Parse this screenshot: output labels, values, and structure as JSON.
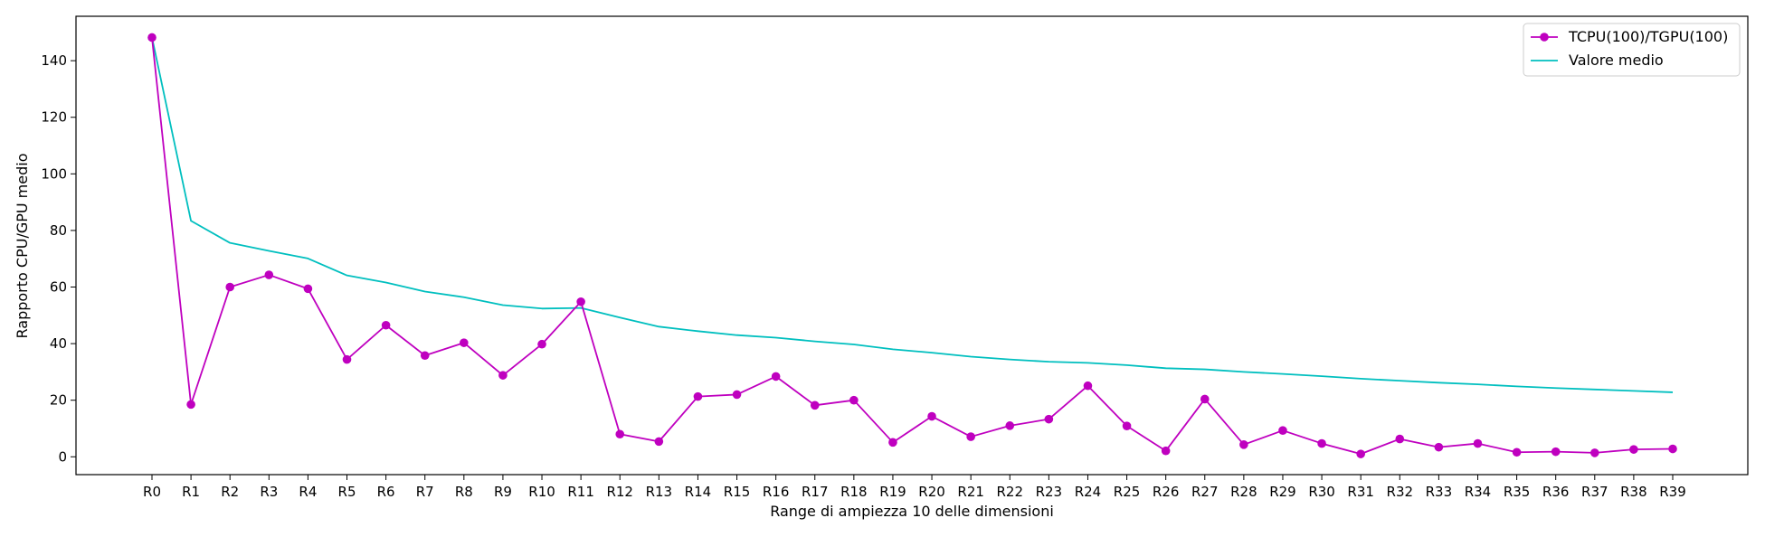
{
  "chart_data": {
    "type": "line",
    "title": "",
    "xlabel": "Range di ampiezza 10 delle dimensioni",
    "ylabel": "Rapporto CPU/GPU medio",
    "categories": [
      "R0",
      "R1",
      "R2",
      "R3",
      "R4",
      "R5",
      "R6",
      "R7",
      "R8",
      "R9",
      "R10",
      "R11",
      "R12",
      "R13",
      "R14",
      "R15",
      "R16",
      "R17",
      "R18",
      "R19",
      "R20",
      "R21",
      "R22",
      "R23",
      "R24",
      "R25",
      "R26",
      "R27",
      "R28",
      "R29",
      "R30",
      "R31",
      "R32",
      "R33",
      "R34",
      "R35",
      "R36",
      "R37",
      "R38",
      "R39"
    ],
    "y_ticks": [
      0,
      20,
      40,
      60,
      80,
      100,
      120,
      140
    ],
    "ylim": [
      -6.3,
      155.7
    ],
    "grid": false,
    "legend_position": "top-right",
    "series": [
      {
        "name": "TCPU(100)/TGPU(100)",
        "color": "#bf00bf",
        "marker": "circle",
        "values": [
          148.2,
          18.5,
          60.0,
          64.3,
          59.4,
          34.4,
          46.5,
          35.8,
          40.3,
          28.8,
          39.8,
          54.8,
          8.0,
          5.4,
          21.3,
          22.0,
          28.4,
          18.2,
          20.0,
          5.1,
          14.3,
          7.1,
          11.0,
          13.3,
          25.1,
          10.9,
          2.1,
          20.4,
          4.3,
          9.3,
          4.7,
          1.0,
          6.3,
          3.4,
          4.7,
          1.6,
          1.8,
          1.4,
          2.6,
          2.8
        ]
      },
      {
        "name": "Valore medio",
        "color": "#00bfbf",
        "marker": "none",
        "values": [
          148.2,
          83.4,
          75.6,
          72.8,
          70.1,
          64.1,
          61.6,
          58.4,
          56.4,
          53.6,
          52.4,
          52.6,
          49.2,
          46.0,
          44.4,
          43.0,
          42.1,
          40.8,
          39.7,
          38.0,
          36.8,
          35.4,
          34.4,
          33.6,
          33.2,
          32.4,
          31.3,
          30.9,
          30.0,
          29.3,
          28.5,
          27.6,
          26.9,
          26.2,
          25.6,
          24.9,
          24.3,
          23.8,
          23.3,
          22.8
        ]
      }
    ]
  }
}
